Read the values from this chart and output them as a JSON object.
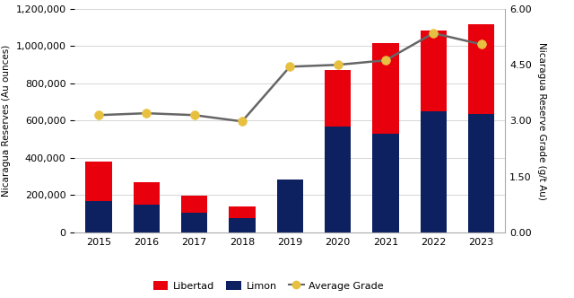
{
  "years": [
    2015,
    2016,
    2017,
    2018,
    2019,
    2020,
    2021,
    2022,
    2023
  ],
  "limon": [
    170000,
    150000,
    105000,
    75000,
    285000,
    570000,
    530000,
    650000,
    635000
  ],
  "libertad": [
    210000,
    120000,
    90000,
    65000,
    0,
    300000,
    485000,
    435000,
    485000
  ],
  "grade": [
    3.15,
    3.2,
    3.15,
    2.98,
    4.45,
    4.5,
    4.62,
    5.35,
    5.05
  ],
  "bar_color_limon": "#0d2060",
  "bar_color_libertad": "#e8000d",
  "line_color": "#666666",
  "marker_facecolor": "#e8c040",
  "marker_edgecolor": "#e8c040",
  "ylabel_left": "Nicaragua Reserves (Au ounces)",
  "ylabel_right": "Nicaragua Reserve Grade (g/t Au)",
  "ylim_left": [
    0,
    1200000
  ],
  "ylim_right": [
    0,
    6.0
  ],
  "yticks_left": [
    0,
    200000,
    400000,
    600000,
    800000,
    1000000,
    1200000
  ],
  "yticks_right": [
    0.0,
    1.5,
    3.0,
    4.5,
    6.0
  ],
  "legend_labels": [
    "Libertad",
    "Limon",
    "Average Grade"
  ],
  "background_color": "#ffffff",
  "grid_color": "#d0d0d0"
}
